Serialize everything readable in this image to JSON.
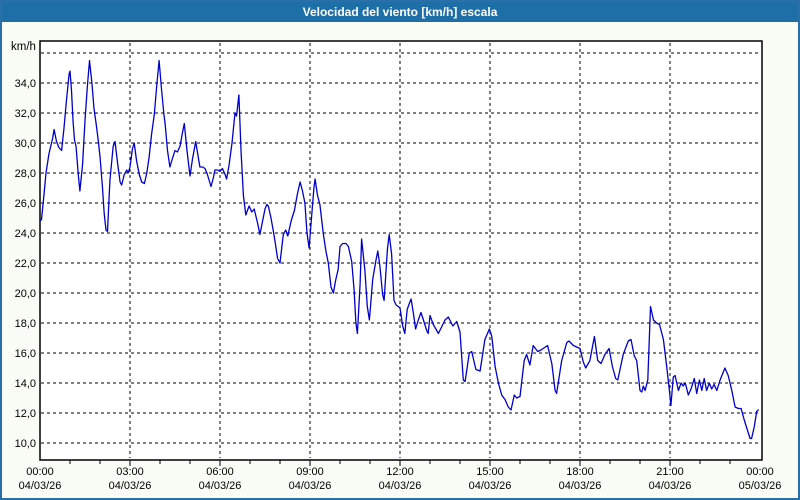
{
  "window": {
    "title": "Velocidad del viento [km/h] escala"
  },
  "chart_data": {
    "type": "line",
    "title": "Velocidad del viento [km/h] escala",
    "y_unit_label": "km/h",
    "ylabel": "km/h",
    "xlabel": "",
    "grid": true,
    "legend": "none",
    "line_color": "#0000cd",
    "ylim": [
      8.9,
      36.8
    ],
    "xlim_hours": [
      0,
      24
    ],
    "yticks": [
      {
        "v": 36,
        "label": ""
      },
      {
        "v": 34,
        "label": "34,0"
      },
      {
        "v": 32,
        "label": "32,0"
      },
      {
        "v": 30,
        "label": "30,0"
      },
      {
        "v": 28,
        "label": "28,0"
      },
      {
        "v": 26,
        "label": "26,0"
      },
      {
        "v": 24,
        "label": "24,0"
      },
      {
        "v": 22,
        "label": "22,0"
      },
      {
        "v": 20,
        "label": "20,0"
      },
      {
        "v": 18,
        "label": "18,0"
      },
      {
        "v": 16,
        "label": "16,0"
      },
      {
        "v": 14,
        "label": "14,0"
      },
      {
        "v": 12,
        "label": "12,0"
      },
      {
        "v": 10,
        "label": "10,0"
      }
    ],
    "xticks": [
      {
        "h": 0,
        "time": "00:00",
        "date": "04/03/26"
      },
      {
        "h": 3,
        "time": "03:00",
        "date": "04/03/26"
      },
      {
        "h": 6,
        "time": "06:00",
        "date": "04/03/26"
      },
      {
        "h": 9,
        "time": "09:00",
        "date": "04/03/26"
      },
      {
        "h": 12,
        "time": "12:00",
        "date": "04/03/26"
      },
      {
        "h": 15,
        "time": "15:00",
        "date": "04/03/26"
      },
      {
        "h": 18,
        "time": "18:00",
        "date": "04/03/26"
      },
      {
        "h": 21,
        "time": "21:00",
        "date": "04/03/26"
      },
      {
        "h": 24,
        "time": "00:00",
        "date": "05/03/26"
      }
    ],
    "series": [
      {
        "name": "Velocidad del viento [km/h]",
        "points": [
          [
            0.0,
            24.8
          ],
          [
            0.05,
            24.9
          ],
          [
            0.13,
            26.5
          ],
          [
            0.2,
            28.0
          ],
          [
            0.3,
            29.3
          ],
          [
            0.42,
            30.3
          ],
          [
            0.47,
            30.9
          ],
          [
            0.55,
            30.1
          ],
          [
            0.63,
            29.7
          ],
          [
            0.72,
            29.5
          ],
          [
            0.8,
            31.0
          ],
          [
            0.88,
            32.8
          ],
          [
            0.97,
            34.6
          ],
          [
            1.0,
            34.8
          ],
          [
            1.05,
            33.5
          ],
          [
            1.1,
            31.5
          ],
          [
            1.15,
            30.2
          ],
          [
            1.2,
            29.8
          ],
          [
            1.28,
            27.8
          ],
          [
            1.33,
            26.8
          ],
          [
            1.42,
            28.6
          ],
          [
            1.5,
            31.5
          ],
          [
            1.58,
            33.8
          ],
          [
            1.65,
            35.5
          ],
          [
            1.73,
            34.0
          ],
          [
            1.8,
            32.3
          ],
          [
            1.87,
            31.3
          ],
          [
            1.94,
            30.2
          ],
          [
            2.0,
            29.1
          ],
          [
            2.08,
            27.1
          ],
          [
            2.14,
            25.3
          ],
          [
            2.2,
            24.2
          ],
          [
            2.25,
            24.1
          ],
          [
            2.33,
            27.5
          ],
          [
            2.44,
            29.8
          ],
          [
            2.5,
            30.1
          ],
          [
            2.59,
            28.6
          ],
          [
            2.67,
            27.4
          ],
          [
            2.72,
            27.2
          ],
          [
            2.81,
            27.9
          ],
          [
            2.89,
            28.2
          ],
          [
            2.94,
            28.0
          ],
          [
            3.0,
            28.4
          ],
          [
            3.08,
            29.6
          ],
          [
            3.14,
            30.0
          ],
          [
            3.22,
            28.8
          ],
          [
            3.31,
            27.9
          ],
          [
            3.39,
            27.4
          ],
          [
            3.48,
            27.3
          ],
          [
            3.56,
            28.0
          ],
          [
            3.64,
            29.1
          ],
          [
            3.72,
            30.6
          ],
          [
            3.81,
            31.9
          ],
          [
            3.89,
            33.8
          ],
          [
            3.97,
            35.5
          ],
          [
            4.05,
            33.6
          ],
          [
            4.13,
            31.9
          ],
          [
            4.17,
            31.3
          ],
          [
            4.25,
            29.5
          ],
          [
            4.33,
            28.4
          ],
          [
            4.42,
            29.0
          ],
          [
            4.5,
            29.5
          ],
          [
            4.58,
            29.4
          ],
          [
            4.67,
            29.8
          ],
          [
            4.75,
            30.7
          ],
          [
            4.81,
            31.3
          ],
          [
            4.9,
            29.5
          ],
          [
            5.0,
            27.8
          ],
          [
            5.08,
            28.9
          ],
          [
            5.19,
            30.1
          ],
          [
            5.28,
            29.0
          ],
          [
            5.33,
            28.4
          ],
          [
            5.42,
            28.4
          ],
          [
            5.5,
            28.3
          ],
          [
            5.58,
            27.9
          ],
          [
            5.67,
            27.3
          ],
          [
            5.7,
            27.1
          ],
          [
            5.78,
            27.7
          ],
          [
            5.83,
            28.2
          ],
          [
            5.92,
            28.2
          ],
          [
            6.0,
            28.1
          ],
          [
            6.08,
            28.3
          ],
          [
            6.17,
            27.9
          ],
          [
            6.22,
            27.6
          ],
          [
            6.3,
            28.5
          ],
          [
            6.4,
            30.0
          ],
          [
            6.5,
            32.0
          ],
          [
            6.55,
            31.8
          ],
          [
            6.63,
            33.2
          ],
          [
            6.7,
            29.5
          ],
          [
            6.78,
            26.5
          ],
          [
            6.86,
            25.2
          ],
          [
            6.97,
            25.8
          ],
          [
            7.06,
            25.4
          ],
          [
            7.14,
            25.6
          ],
          [
            7.26,
            24.6
          ],
          [
            7.33,
            23.9
          ],
          [
            7.42,
            24.8
          ],
          [
            7.5,
            25.6
          ],
          [
            7.56,
            25.9
          ],
          [
            7.61,
            25.8
          ],
          [
            7.7,
            25.0
          ],
          [
            7.78,
            24.1
          ],
          [
            7.83,
            23.5
          ],
          [
            7.92,
            22.3
          ],
          [
            8.0,
            22.0
          ],
          [
            8.11,
            23.9
          ],
          [
            8.19,
            24.2
          ],
          [
            8.26,
            23.8
          ],
          [
            8.37,
            24.8
          ],
          [
            8.48,
            25.5
          ],
          [
            8.58,
            26.6
          ],
          [
            8.67,
            27.4
          ],
          [
            8.75,
            26.8
          ],
          [
            8.83,
            26.0
          ],
          [
            8.9,
            24.0
          ],
          [
            8.97,
            23.0
          ],
          [
            9.05,
            25.0
          ],
          [
            9.13,
            27.0
          ],
          [
            9.17,
            27.6
          ],
          [
            9.25,
            26.5
          ],
          [
            9.33,
            25.9
          ],
          [
            9.44,
            24.0
          ],
          [
            9.53,
            22.8
          ],
          [
            9.61,
            22.0
          ],
          [
            9.7,
            20.4
          ],
          [
            9.78,
            20.0
          ],
          [
            9.85,
            20.8
          ],
          [
            9.94,
            21.6
          ],
          [
            10.0,
            23.1
          ],
          [
            10.09,
            23.3
          ],
          [
            10.2,
            23.3
          ],
          [
            10.28,
            23.1
          ],
          [
            10.39,
            22.1
          ],
          [
            10.47,
            20.2
          ],
          [
            10.53,
            18.0
          ],
          [
            10.58,
            17.3
          ],
          [
            10.67,
            20.6
          ],
          [
            10.72,
            23.6
          ],
          [
            10.83,
            21.5
          ],
          [
            10.91,
            19.1
          ],
          [
            10.98,
            18.2
          ],
          [
            11.09,
            20.9
          ],
          [
            11.2,
            22.2
          ],
          [
            11.26,
            22.8
          ],
          [
            11.33,
            21.8
          ],
          [
            11.42,
            19.9
          ],
          [
            11.47,
            19.5
          ],
          [
            11.58,
            22.9
          ],
          [
            11.64,
            23.9
          ],
          [
            11.72,
            22.6
          ],
          [
            11.8,
            19.5
          ],
          [
            11.87,
            19.2
          ],
          [
            11.94,
            19.1
          ],
          [
            12.0,
            19.0
          ],
          [
            12.09,
            17.8
          ],
          [
            12.16,
            17.3
          ],
          [
            12.24,
            18.9
          ],
          [
            12.31,
            19.3
          ],
          [
            12.37,
            19.6
          ],
          [
            12.45,
            18.6
          ],
          [
            12.52,
            17.6
          ],
          [
            12.61,
            18.2
          ],
          [
            12.7,
            18.7
          ],
          [
            12.78,
            18.2
          ],
          [
            12.89,
            17.5
          ],
          [
            12.94,
            17.3
          ],
          [
            13.0,
            18.5
          ],
          [
            13.11,
            17.9
          ],
          [
            13.28,
            17.3
          ],
          [
            13.5,
            18.2
          ],
          [
            13.61,
            18.4
          ],
          [
            13.76,
            17.8
          ],
          [
            13.89,
            18.1
          ],
          [
            14.0,
            17.4
          ],
          [
            14.11,
            14.2
          ],
          [
            14.17,
            14.1
          ],
          [
            14.31,
            16.0
          ],
          [
            14.39,
            16.1
          ],
          [
            14.53,
            14.9
          ],
          [
            14.67,
            14.8
          ],
          [
            14.83,
            16.9
          ],
          [
            14.98,
            17.6
          ],
          [
            15.06,
            17.1
          ],
          [
            15.17,
            15.1
          ],
          [
            15.28,
            14.0
          ],
          [
            15.39,
            13.2
          ],
          [
            15.5,
            12.9
          ],
          [
            15.61,
            12.4
          ],
          [
            15.7,
            12.2
          ],
          [
            15.81,
            13.2
          ],
          [
            15.89,
            13.0
          ],
          [
            16.0,
            13.1
          ],
          [
            16.14,
            15.5
          ],
          [
            16.22,
            15.9
          ],
          [
            16.33,
            15.2
          ],
          [
            16.44,
            16.5
          ],
          [
            16.59,
            16.1
          ],
          [
            16.7,
            16.2
          ],
          [
            16.92,
            16.5
          ],
          [
            17.06,
            15.3
          ],
          [
            17.17,
            13.5
          ],
          [
            17.22,
            13.3
          ],
          [
            17.39,
            15.5
          ],
          [
            17.56,
            16.7
          ],
          [
            17.63,
            16.8
          ],
          [
            17.78,
            16.5
          ],
          [
            17.89,
            16.4
          ],
          [
            18.0,
            16.3
          ],
          [
            18.11,
            15.4
          ],
          [
            18.19,
            15.0
          ],
          [
            18.33,
            15.5
          ],
          [
            18.48,
            17.1
          ],
          [
            18.59,
            15.5
          ],
          [
            18.7,
            15.3
          ],
          [
            18.83,
            15.9
          ],
          [
            18.97,
            16.3
          ],
          [
            19.08,
            15.1
          ],
          [
            19.19,
            14.3
          ],
          [
            19.26,
            14.2
          ],
          [
            19.44,
            15.9
          ],
          [
            19.61,
            16.8
          ],
          [
            19.7,
            16.9
          ],
          [
            19.81,
            15.8
          ],
          [
            19.89,
            15.5
          ],
          [
            20.0,
            13.5
          ],
          [
            20.06,
            13.4
          ],
          [
            20.11,
            13.8
          ],
          [
            20.17,
            13.5
          ],
          [
            20.26,
            14.2
          ],
          [
            20.35,
            19.1
          ],
          [
            20.45,
            18.2
          ],
          [
            20.55,
            18.0
          ],
          [
            20.65,
            17.9
          ],
          [
            20.78,
            16.9
          ],
          [
            20.89,
            15.1
          ],
          [
            20.98,
            13.5
          ],
          [
            21.03,
            12.5
          ],
          [
            21.11,
            14.4
          ],
          [
            21.17,
            14.5
          ],
          [
            21.28,
            13.5
          ],
          [
            21.37,
            14.0
          ],
          [
            21.44,
            13.8
          ],
          [
            21.51,
            14.0
          ],
          [
            21.61,
            13.2
          ],
          [
            21.7,
            13.6
          ],
          [
            21.81,
            14.3
          ],
          [
            21.89,
            13.3
          ],
          [
            21.98,
            14.2
          ],
          [
            22.06,
            13.5
          ],
          [
            22.14,
            14.3
          ],
          [
            22.22,
            13.5
          ],
          [
            22.31,
            14.0
          ],
          [
            22.39,
            13.6
          ],
          [
            22.47,
            13.9
          ],
          [
            22.56,
            13.5
          ],
          [
            22.67,
            14.2
          ],
          [
            22.83,
            15.0
          ],
          [
            22.94,
            14.5
          ],
          [
            23.06,
            13.5
          ],
          [
            23.17,
            12.4
          ],
          [
            23.28,
            12.3
          ],
          [
            23.37,
            12.3
          ],
          [
            23.48,
            11.5
          ],
          [
            23.59,
            10.8
          ],
          [
            23.67,
            10.3
          ],
          [
            23.72,
            10.3
          ],
          [
            23.81,
            11.1
          ],
          [
            23.89,
            12.1
          ],
          [
            23.94,
            12.2
          ]
        ]
      }
    ]
  }
}
